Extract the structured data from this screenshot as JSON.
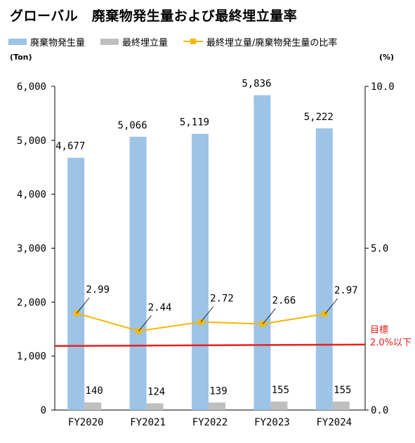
{
  "title": "グローバル　廃棄物発生量および最終埋立量率",
  "legend": {
    "generated": "廃棄物発生量",
    "landfill": "最終埋立量",
    "ratio": "最終埋立量/廃棄物発生量の比率"
  },
  "units": {
    "left": "(Ton)",
    "right": "(%)"
  },
  "target": {
    "line1": "目標",
    "line2": "2.0%以下",
    "value": 2.0
  },
  "colors": {
    "generated": "#9dc3e6",
    "landfill": "#bfbfbf",
    "ratio": "#f5b800",
    "target": "#e8201c"
  },
  "chart_data": {
    "type": "bar",
    "categories": [
      "FY2020",
      "FY2021",
      "FY2022",
      "FY2023",
      "FY2024"
    ],
    "series": [
      {
        "name": "廃棄物発生量",
        "axis": "left",
        "type": "bar",
        "values": [
          4677,
          5066,
          5119,
          5836,
          5222
        ]
      },
      {
        "name": "最終埋立量",
        "axis": "left",
        "type": "bar",
        "values": [
          140,
          124,
          139,
          155,
          155
        ]
      },
      {
        "name": "最終埋立量/廃棄物発生量の比率",
        "axis": "right",
        "type": "line",
        "values": [
          2.99,
          2.44,
          2.72,
          2.66,
          2.97
        ]
      }
    ],
    "data_labels": {
      "generated": [
        "4,677",
        "5,066",
        "5,119",
        "5,836",
        "5,222"
      ],
      "landfill": [
        "140",
        "124",
        "139",
        "155",
        "155"
      ],
      "ratio": [
        "2.99",
        "2.44",
        "2.72",
        "2.66",
        "2.97"
      ]
    },
    "y_left": {
      "lim": [
        0,
        6000
      ],
      "ticks": [
        0,
        1000,
        2000,
        3000,
        4000,
        5000,
        6000
      ],
      "tick_labels": [
        "0",
        "1,000",
        "2,000",
        "3,000",
        "4,000",
        "5,000",
        "6,000"
      ]
    },
    "y_right": {
      "lim": [
        0,
        10
      ],
      "ticks": [
        0,
        5,
        10
      ],
      "tick_labels": [
        "0.0",
        "5.0",
        "10.0"
      ]
    },
    "target_line": {
      "axis": "right",
      "value": 2.0
    },
    "grid": false,
    "legend_position": "top-left"
  }
}
